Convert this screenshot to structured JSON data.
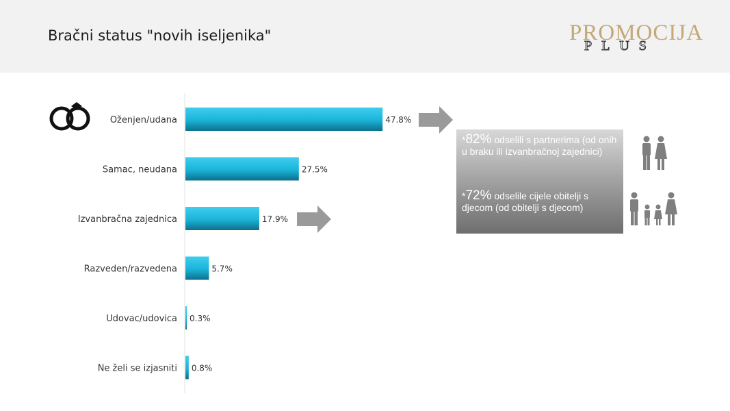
{
  "header": {
    "title": "Bračni status \"novih iseljenika\"",
    "logo_main": "PROMOCIJA",
    "logo_sub": "PLUS"
  },
  "chart_data": {
    "type": "bar",
    "orientation": "horizontal",
    "categories": [
      "Oženjen/udana",
      "Samac, neudana",
      "Izvanbračna zajednica",
      "Razveden/razvedena",
      "Udovac/udovica",
      "Ne želi se izjasniti"
    ],
    "values": [
      47.8,
      27.5,
      17.9,
      5.7,
      0.3,
      0.8
    ],
    "value_labels": [
      "47.8%",
      "27.5%",
      "17.9%",
      "5.7%",
      "0.3%",
      "0.8%"
    ],
    "xlim": [
      0,
      100
    ],
    "grid": false,
    "legend": "none",
    "bar_color": "#1ab8dc"
  },
  "info": {
    "stat1_prefix": "*",
    "stat1_big": "82%",
    "stat1_text": " odselili s partnerima (od onih u braku ili izvanbračnoj zajednici)",
    "stat2_prefix": "*",
    "stat2_big": "72%",
    "stat2_text": " odselile cijele obitelji s djecom (od obitelji s djecom)"
  },
  "icons": {
    "rings": "wedding-rings-icon",
    "couple": "couple-icon",
    "family": "family-icon",
    "arrow": "arrow-right-icon"
  },
  "colors": {
    "bar_top": "#3fcdef",
    "bar_bottom": "#0e6f8c",
    "arrow": "#9a9a9a",
    "logo_gold": "#c4a876",
    "icon_gray": "#7f7f7f"
  }
}
